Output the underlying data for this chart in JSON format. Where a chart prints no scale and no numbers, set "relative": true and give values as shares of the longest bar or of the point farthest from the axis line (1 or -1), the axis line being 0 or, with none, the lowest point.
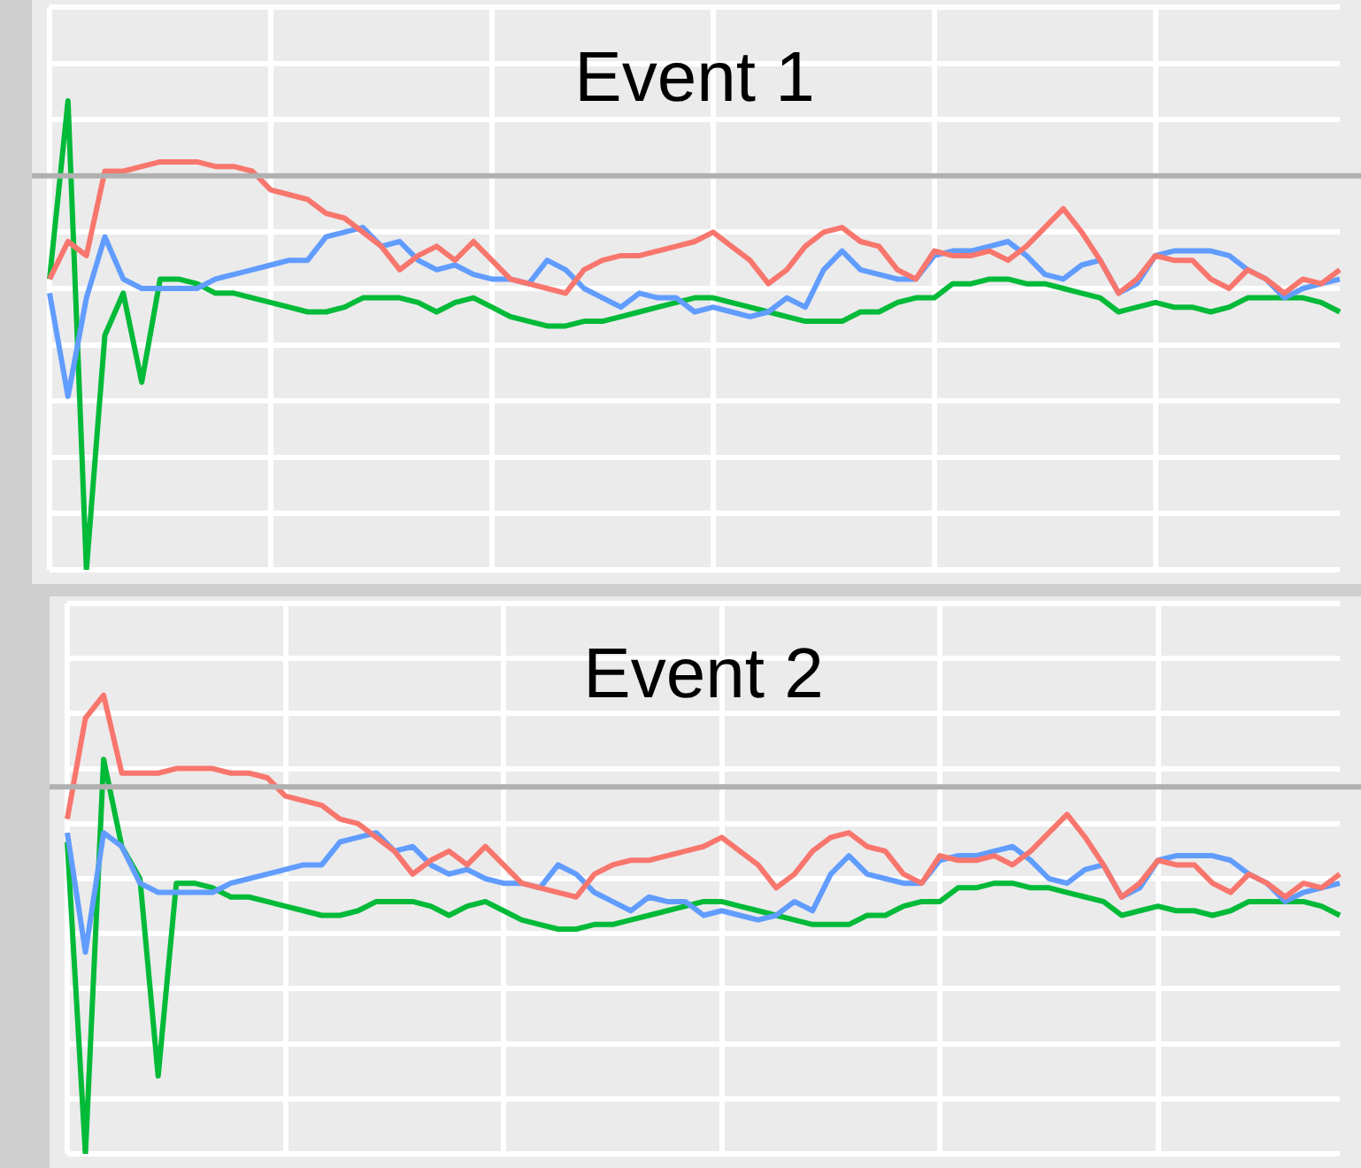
{
  "chart_data": [
    {
      "type": "line",
      "title": "Event 1",
      "relative": true,
      "grid": true,
      "legend": false,
      "tick_labels": false,
      "marker": "none",
      "line_style": "solid",
      "categories": [
        null,
        null,
        null,
        null,
        null,
        null,
        null,
        null,
        null,
        null,
        null,
        null,
        null,
        null,
        null,
        null,
        null,
        null,
        null,
        null,
        null,
        null,
        null,
        null,
        null,
        null,
        null,
        null,
        null,
        null,
        null,
        null,
        null,
        null,
        null,
        null,
        null,
        null,
        null,
        null,
        null,
        null,
        null,
        null,
        null,
        null,
        null,
        null,
        null,
        null,
        null,
        null,
        null,
        null,
        null,
        null,
        null,
        null,
        null,
        null,
        null,
        null,
        null,
        null,
        null,
        null,
        null,
        null,
        null,
        null,
        null
      ],
      "ref_lines": [
        {
          "axis": "y",
          "value": 0.84,
          "color": "#b0b0b0"
        }
      ],
      "series": [
        {
          "color": "#f8766d",
          "values": [
            0.62,
            0.7,
            0.67,
            0.85,
            0.85,
            0.86,
            0.87,
            0.87,
            0.87,
            0.86,
            0.86,
            0.85,
            0.81,
            0.8,
            0.79,
            0.76,
            0.75,
            0.72,
            0.69,
            0.64,
            0.67,
            0.69,
            0.66,
            0.7,
            0.66,
            0.62,
            0.61,
            0.6,
            0.59,
            0.64,
            0.66,
            0.67,
            0.67,
            0.68,
            0.69,
            0.7,
            0.72,
            0.69,
            0.66,
            0.61,
            0.64,
            0.69,
            0.72,
            0.73,
            0.7,
            0.69,
            0.64,
            0.62,
            0.68,
            0.67,
            0.67,
            0.68,
            0.66,
            0.69,
            0.73,
            0.77,
            0.72,
            0.66,
            0.59,
            0.62,
            0.67,
            0.66,
            0.66,
            0.62,
            0.6,
            0.64,
            0.62,
            0.59,
            0.62,
            0.61,
            0.64
          ]
        },
        {
          "color": "#619cff",
          "values": [
            0.59,
            0.37,
            0.58,
            0.71,
            0.62,
            0.6,
            0.6,
            0.6,
            0.6,
            0.62,
            0.63,
            0.64,
            0.65,
            0.66,
            0.66,
            0.71,
            0.72,
            0.73,
            0.69,
            0.7,
            0.66,
            0.64,
            0.65,
            0.63,
            0.62,
            0.62,
            0.61,
            0.66,
            0.64,
            0.6,
            0.58,
            0.56,
            0.59,
            0.58,
            0.58,
            0.55,
            0.56,
            0.55,
            0.54,
            0.55,
            0.58,
            0.56,
            0.64,
            0.68,
            0.64,
            0.63,
            0.62,
            0.62,
            0.67,
            0.68,
            0.68,
            0.69,
            0.7,
            0.67,
            0.63,
            0.62,
            0.65,
            0.66,
            0.59,
            0.61,
            0.67,
            0.68,
            0.68,
            0.68,
            0.67,
            0.64,
            0.62,
            0.58,
            0.6,
            0.61,
            0.62
          ]
        },
        {
          "color": "#00ba38",
          "values": [
            0.62,
            1.0,
            0.0,
            0.5,
            0.59,
            0.4,
            0.62,
            0.62,
            0.61,
            0.59,
            0.59,
            0.58,
            0.57,
            0.56,
            0.55,
            0.55,
            0.56,
            0.58,
            0.58,
            0.58,
            0.57,
            0.55,
            0.57,
            0.58,
            0.56,
            0.54,
            0.53,
            0.52,
            0.52,
            0.53,
            0.53,
            0.54,
            0.55,
            0.56,
            0.57,
            0.58,
            0.58,
            0.57,
            0.56,
            0.55,
            0.54,
            0.53,
            0.53,
            0.53,
            0.55,
            0.55,
            0.57,
            0.58,
            0.58,
            0.61,
            0.61,
            0.62,
            0.62,
            0.61,
            0.61,
            0.6,
            0.59,
            0.58,
            0.55,
            0.56,
            0.57,
            0.56,
            0.56,
            0.55,
            0.56,
            0.58,
            0.58,
            0.58,
            0.58,
            0.57,
            0.55
          ]
        }
      ]
    },
    {
      "type": "line",
      "title": "Event 2",
      "relative": true,
      "grid": true,
      "legend": false,
      "tick_labels": false,
      "marker": "none",
      "line_style": "solid",
      "categories": [
        null,
        null,
        null,
        null,
        null,
        null,
        null,
        null,
        null,
        null,
        null,
        null,
        null,
        null,
        null,
        null,
        null,
        null,
        null,
        null,
        null,
        null,
        null,
        null,
        null,
        null,
        null,
        null,
        null,
        null,
        null,
        null,
        null,
        null,
        null,
        null,
        null,
        null,
        null,
        null,
        null,
        null,
        null,
        null,
        null,
        null,
        null,
        null,
        null,
        null,
        null,
        null,
        null,
        null,
        null,
        null,
        null,
        null,
        null,
        null,
        null,
        null,
        null,
        null,
        null,
        null,
        null,
        null,
        null,
        null,
        null
      ],
      "ref_lines": [
        {
          "axis": "y",
          "value": 0.8,
          "color": "#b0b0b0"
        }
      ],
      "series": [
        {
          "color": "#f8766d",
          "values": [
            0.73,
            0.95,
            1.0,
            0.83,
            0.83,
            0.83,
            0.84,
            0.84,
            0.84,
            0.83,
            0.83,
            0.82,
            0.78,
            0.77,
            0.76,
            0.73,
            0.72,
            0.69,
            0.66,
            0.61,
            0.64,
            0.66,
            0.63,
            0.67,
            0.63,
            0.59,
            0.58,
            0.57,
            0.56,
            0.61,
            0.63,
            0.64,
            0.64,
            0.65,
            0.66,
            0.67,
            0.69,
            0.66,
            0.63,
            0.58,
            0.61,
            0.66,
            0.69,
            0.7,
            0.67,
            0.66,
            0.61,
            0.59,
            0.65,
            0.64,
            0.64,
            0.65,
            0.63,
            0.66,
            0.7,
            0.74,
            0.69,
            0.63,
            0.56,
            0.59,
            0.64,
            0.63,
            0.63,
            0.59,
            0.57,
            0.61,
            0.59,
            0.56,
            0.59,
            0.58,
            0.61
          ]
        },
        {
          "color": "#619cff",
          "values": [
            0.7,
            0.44,
            0.7,
            0.67,
            0.59,
            0.57,
            0.57,
            0.57,
            0.57,
            0.59,
            0.6,
            0.61,
            0.62,
            0.63,
            0.63,
            0.68,
            0.69,
            0.7,
            0.66,
            0.67,
            0.63,
            0.61,
            0.62,
            0.6,
            0.59,
            0.59,
            0.58,
            0.63,
            0.61,
            0.57,
            0.55,
            0.53,
            0.56,
            0.55,
            0.55,
            0.52,
            0.53,
            0.52,
            0.51,
            0.52,
            0.55,
            0.53,
            0.61,
            0.65,
            0.61,
            0.6,
            0.59,
            0.59,
            0.64,
            0.65,
            0.65,
            0.66,
            0.67,
            0.64,
            0.6,
            0.59,
            0.62,
            0.63,
            0.56,
            0.58,
            0.64,
            0.65,
            0.65,
            0.65,
            0.64,
            0.61,
            0.59,
            0.55,
            0.57,
            0.58,
            0.59
          ]
        },
        {
          "color": "#00ba38",
          "values": [
            0.68,
            0.0,
            0.86,
            0.67,
            0.6,
            0.17,
            0.59,
            0.59,
            0.58,
            0.56,
            0.56,
            0.55,
            0.54,
            0.53,
            0.52,
            0.52,
            0.53,
            0.55,
            0.55,
            0.55,
            0.54,
            0.52,
            0.54,
            0.55,
            0.53,
            0.51,
            0.5,
            0.49,
            0.49,
            0.5,
            0.5,
            0.51,
            0.52,
            0.53,
            0.54,
            0.55,
            0.55,
            0.54,
            0.53,
            0.52,
            0.51,
            0.5,
            0.5,
            0.5,
            0.52,
            0.52,
            0.54,
            0.55,
            0.55,
            0.58,
            0.58,
            0.59,
            0.59,
            0.58,
            0.58,
            0.57,
            0.56,
            0.55,
            0.52,
            0.53,
            0.54,
            0.53,
            0.53,
            0.52,
            0.53,
            0.55,
            0.55,
            0.55,
            0.55,
            0.54,
            0.52
          ]
        }
      ]
    }
  ]
}
